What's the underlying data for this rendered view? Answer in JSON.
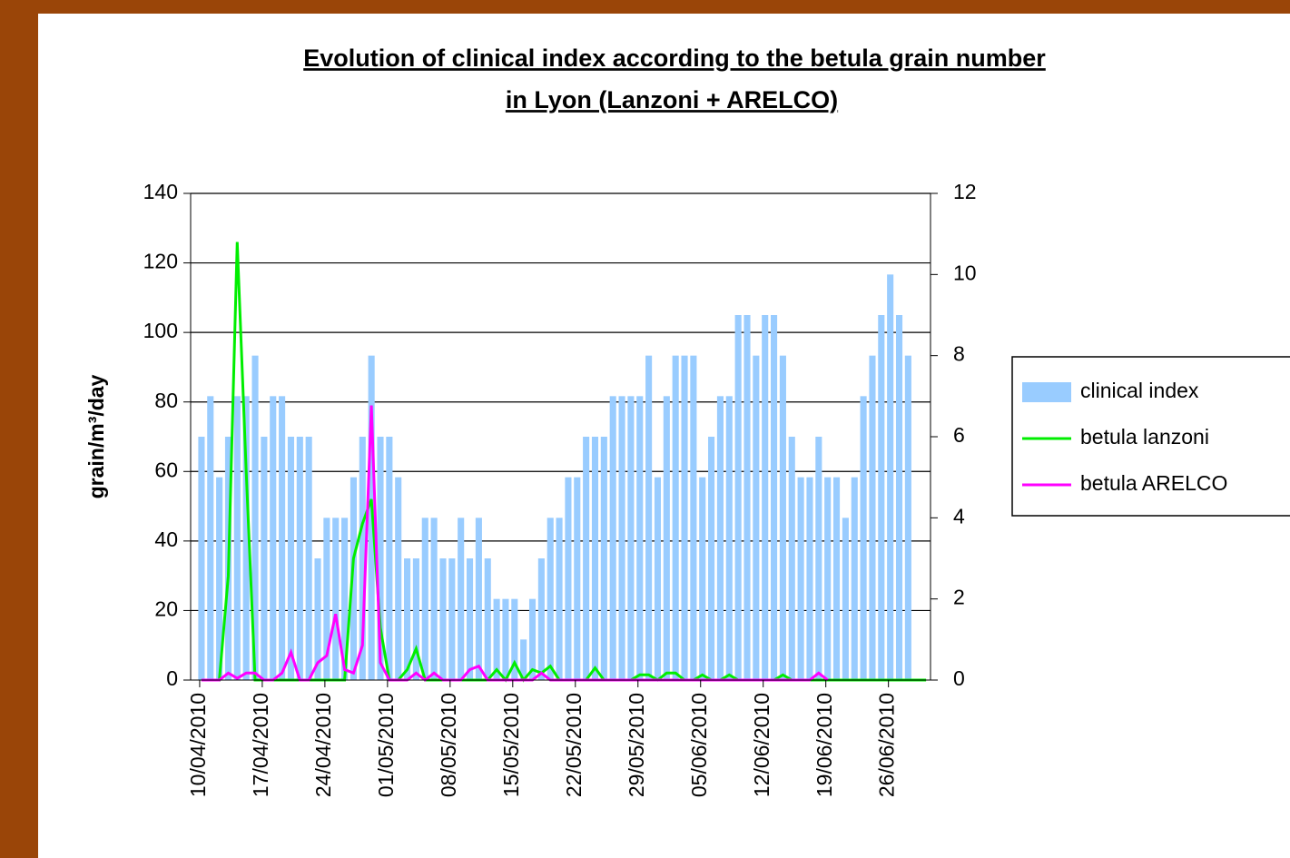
{
  "chart_data": {
    "type": "bar_line",
    "title": [
      "Evolution of clinical index according to the betula grain number",
      "in Lyon (Lanzoni + ARELCO)"
    ],
    "y_label": "grain/m³/day",
    "categories": [
      "10/04/2010",
      null,
      null,
      null,
      null,
      null,
      null,
      "17/04/2010",
      null,
      null,
      null,
      null,
      null,
      null,
      "24/04/2010",
      null,
      null,
      null,
      null,
      null,
      null,
      "01/05/2010",
      null,
      null,
      null,
      null,
      null,
      null,
      "08/05/2010",
      null,
      null,
      null,
      null,
      null,
      null,
      "15/05/2010",
      null,
      null,
      null,
      null,
      null,
      null,
      "22/05/2010",
      null,
      null,
      null,
      null,
      null,
      null,
      "29/05/2010",
      null,
      null,
      null,
      null,
      null,
      null,
      "05/06/2010",
      null,
      null,
      null,
      null,
      null,
      null,
      "12/06/2010",
      null,
      null,
      null,
      null,
      null,
      null,
      "19/06/2010",
      null,
      null,
      null,
      null,
      null,
      null,
      "26/06/2010",
      null,
      null,
      null,
      null
    ],
    "ylim": [
      0,
      140
    ],
    "yticks": [
      0,
      20,
      40,
      60,
      80,
      100,
      120,
      140
    ],
    "y2lim": [
      0,
      12
    ],
    "y2ticks": [
      0,
      2,
      4,
      6,
      8,
      10,
      12
    ],
    "grid": true,
    "legend": "right",
    "series": [
      {
        "name": "clinical index",
        "type": "bar",
        "axis": "y2",
        "color": "#99ccff",
        "values": [
          6,
          7,
          5,
          6,
          7,
          7,
          8,
          6,
          7,
          7,
          6,
          6,
          6,
          3,
          4,
          4,
          4,
          5,
          6,
          8,
          6,
          6,
          5,
          3,
          3,
          4,
          4,
          3,
          3,
          4,
          3,
          4,
          3,
          2,
          2,
          2,
          1,
          2,
          3,
          4,
          4,
          5,
          5,
          6,
          6,
          6,
          7,
          7,
          7,
          7,
          8,
          5,
          7,
          8,
          8,
          8,
          5,
          6,
          7,
          7,
          9,
          9,
          8,
          9,
          9,
          8,
          6,
          5,
          5,
          6,
          5,
          5,
          4,
          5,
          7,
          8,
          9,
          10,
          9,
          8,
          null,
          null
        ]
      },
      {
        "name": "betula lanzoni",
        "type": "line",
        "color": "#00ee00",
        "values": [
          0,
          0,
          0,
          30,
          126,
          60,
          0,
          0,
          0,
          0,
          0,
          0,
          0,
          0,
          0,
          0,
          0,
          35,
          45,
          52,
          15,
          0,
          0,
          3,
          9,
          0,
          0,
          0,
          0,
          0,
          0,
          0,
          0,
          3,
          0,
          5,
          0,
          3,
          2,
          4,
          0,
          0,
          0,
          0,
          3.5,
          0,
          0,
          0,
          0,
          1.5,
          1.5,
          0,
          2,
          2,
          0,
          0,
          1.5,
          0,
          0,
          1.5,
          0,
          0,
          0,
          0,
          0,
          1.5,
          0,
          0,
          0,
          0,
          0,
          0,
          0,
          0,
          0,
          0,
          0,
          0,
          0,
          0,
          0,
          0
        ]
      },
      {
        "name": "betula ARELCO",
        "type": "line",
        "color": "#ff00ff",
        "values": [
          0,
          0,
          0,
          2,
          0.5,
          2,
          2,
          0,
          0,
          2,
          8,
          0,
          0,
          5,
          7,
          19,
          3,
          2,
          10,
          79,
          5,
          0,
          0,
          0,
          2,
          0,
          2,
          0,
          0,
          0,
          3,
          4,
          0,
          0,
          0,
          0,
          0,
          0,
          2,
          0,
          0,
          0,
          0,
          0,
          0,
          0,
          0,
          0,
          0,
          0,
          0,
          0,
          0,
          0,
          0,
          0,
          0,
          0,
          0,
          0,
          0,
          0,
          0,
          0,
          0,
          0,
          0,
          0,
          0,
          2,
          0,
          null,
          null,
          null,
          null,
          null,
          null,
          null,
          null,
          null,
          null,
          null
        ]
      }
    ]
  }
}
